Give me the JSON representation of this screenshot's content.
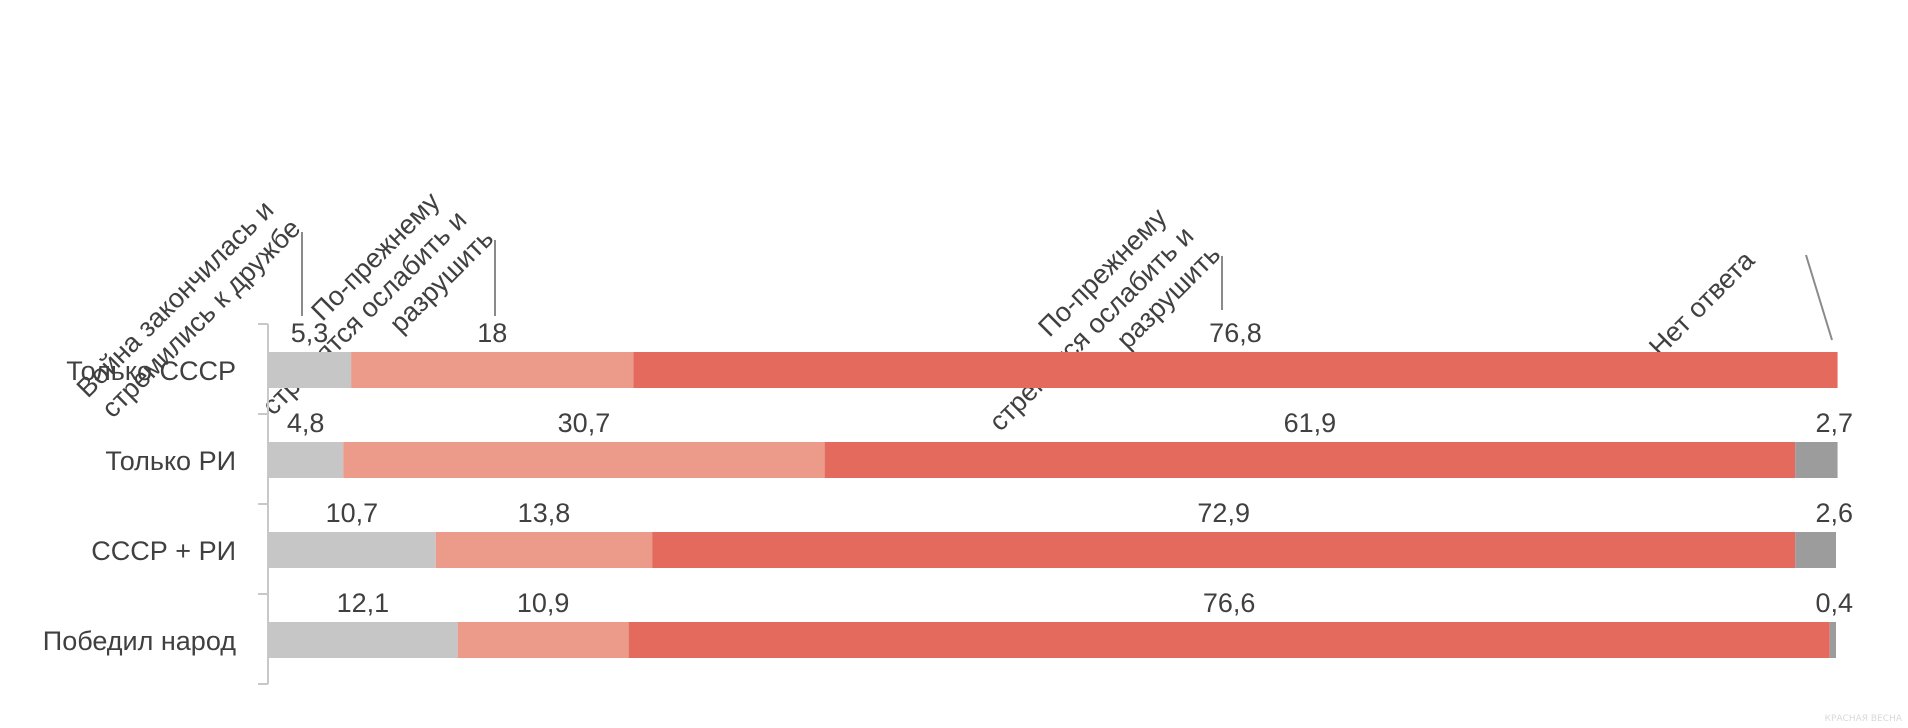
{
  "chart_data": {
    "type": "bar",
    "orientation": "horizontal",
    "stacked": true,
    "categories": [
      "Только СССР",
      "Только РИ",
      "СССР + РИ",
      "Победил народ"
    ],
    "series": [
      {
        "name": "Война закончилась и стремились к дружбе",
        "color": "#c5c6c5",
        "values": [
          5.3,
          4.8,
          10.7,
          12.1
        ]
      },
      {
        "name": "По-прежнему стремятся ослабить и разрушить",
        "color": "#ec9b8b",
        "values": [
          18,
          30.7,
          13.8,
          10.9
        ]
      },
      {
        "name": "По-прежнему стремятся ослабить и разрушить",
        "color": "#e46a5d",
        "values": [
          76.8,
          61.9,
          72.9,
          76.6
        ]
      },
      {
        "name": "Нет ответа",
        "color": "#9c9c9c",
        "values": [
          0,
          2.7,
          2.6,
          0.4
        ]
      }
    ],
    "value_labels": [
      [
        "5,3",
        "18",
        "76,8",
        ""
      ],
      [
        "4,8",
        "30,7",
        "61,9",
        "2,7"
      ],
      [
        "10,7",
        "13,8",
        "72,9",
        "2,6"
      ],
      [
        "12,1",
        "10,9",
        "76,6",
        "0,4"
      ]
    ],
    "xlim": [
      0,
      100
    ],
    "grid": false,
    "legend": "top-rotated-labels"
  },
  "watermark": "КРАСНАЯ ВЕСНА"
}
